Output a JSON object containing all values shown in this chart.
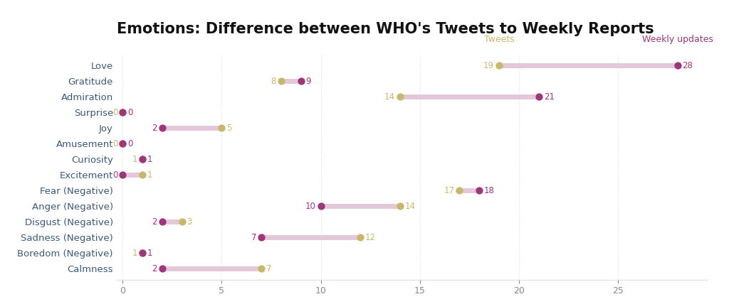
{
  "title": "Emotions: Difference between WHO's Tweets to Weekly Reports",
  "categories": [
    "Love",
    "Gratitude",
    "Admiration",
    "Surprise",
    "Joy",
    "Amusement",
    "Curiosity",
    "Excitement",
    "Fear (Negative)",
    "Anger (Negative)",
    "Disgust (Negative)",
    "Sadness (Negative)",
    "Boredom (Negative)",
    "Calmness"
  ],
  "tweets_values": [
    19,
    8,
    14,
    0,
    5,
    0,
    1,
    1,
    17,
    14,
    3,
    12,
    1,
    7
  ],
  "weekly_values": [
    28,
    9,
    21,
    0,
    2,
    0,
    1,
    0,
    18,
    10,
    2,
    7,
    1,
    2
  ],
  "tweet_color": "#C8B86A",
  "weekly_color": "#A0357A",
  "line_color": "#E2C8D8",
  "legend_tweet_label": "Tweets",
  "legend_weekly_label": "Weekly updates",
  "xlim": [
    -0.3,
    29.5
  ],
  "background_color": "#ffffff",
  "grid_color": "#dddddd",
  "title_fontsize": 15,
  "label_fontsize": 9.5,
  "tick_fontsize": 9,
  "ylabel_color": "#3a5a7a",
  "value_fontsize": 8.5
}
